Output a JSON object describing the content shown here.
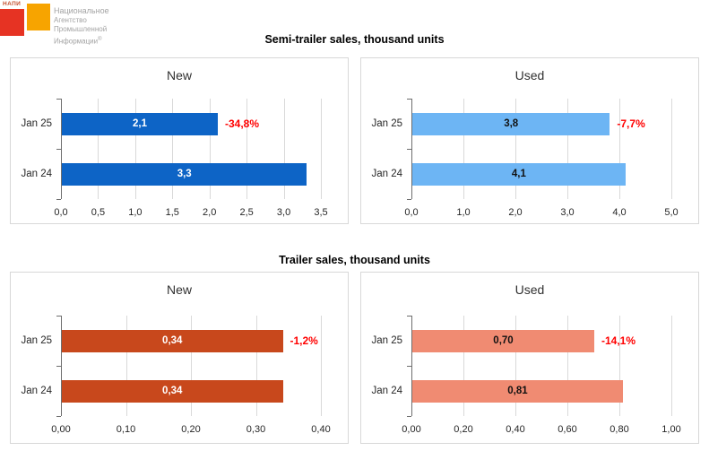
{
  "logo": {
    "acronym": "НАПИ",
    "lines": [
      "Национальное",
      "Агентство",
      "Промышленной",
      "Информации"
    ],
    "registered_mark": "®",
    "colors": {
      "red_square": "#e63323",
      "orange_square": "#f7a400"
    }
  },
  "colors": {
    "negative_pct": "#ff0000",
    "gridline": "#d9d9d9",
    "axis": "#6e6e6e",
    "panel_border": "#d8d8d8"
  },
  "sections": [
    {
      "title": "Semi-trailer sales, thousand units",
      "chart_ids": [
        0,
        1
      ]
    },
    {
      "title": "Trailer sales, thousand units",
      "chart_ids": [
        2,
        3
      ]
    }
  ],
  "chart_data": [
    {
      "type": "bar",
      "orientation": "horizontal",
      "id": "semitrailer-new",
      "title": "New",
      "categories": [
        "Jan 25",
        "Jan 24"
      ],
      "values": [
        2.1,
        3.3
      ],
      "value_labels": [
        "2,1",
        "3,3"
      ],
      "pct_change_label": "-34,8%",
      "xlim": [
        0,
        3.5
      ],
      "tick_labels": [
        "0,0",
        "0,5",
        "1,0",
        "1,5",
        "2,0",
        "2,5",
        "3,0",
        "3,5"
      ],
      "bar_color": "#0d64c6",
      "value_label_color": "#ffffff",
      "grid": true
    },
    {
      "type": "bar",
      "orientation": "horizontal",
      "id": "semitrailer-used",
      "title": "Used",
      "categories": [
        "Jan 25",
        "Jan 24"
      ],
      "values": [
        3.8,
        4.1
      ],
      "value_labels": [
        "3,8",
        "4,1"
      ],
      "pct_change_label": "-7,7%",
      "xlim": [
        0,
        5.0
      ],
      "tick_labels": [
        "0,0",
        "1,0",
        "2,0",
        "3,0",
        "4,0",
        "5,0"
      ],
      "bar_color": "#6db5f4",
      "value_label_color": "#111111",
      "grid": true
    },
    {
      "type": "bar",
      "orientation": "horizontal",
      "id": "trailer-new",
      "title": "New",
      "categories": [
        "Jan 25",
        "Jan 24"
      ],
      "values": [
        0.34,
        0.34
      ],
      "value_labels": [
        "0,34",
        "0,34"
      ],
      "pct_change_label": "-1,2%",
      "xlim": [
        0,
        0.4
      ],
      "tick_labels": [
        "0,00",
        "0,10",
        "0,20",
        "0,30",
        "0,40"
      ],
      "bar_color": "#c8481c",
      "value_label_color": "#ffffff",
      "grid": true
    },
    {
      "type": "bar",
      "orientation": "horizontal",
      "id": "trailer-used",
      "title": "Used",
      "categories": [
        "Jan 25",
        "Jan 24"
      ],
      "values": [
        0.7,
        0.81
      ],
      "value_labels": [
        "0,70",
        "0,81"
      ],
      "pct_change_label": "-14,1%",
      "xlim": [
        0,
        1.0
      ],
      "tick_labels": [
        "0,00",
        "0,20",
        "0,40",
        "0,60",
        "0,80",
        "1,00"
      ],
      "bar_color": "#f08b72",
      "value_label_color": "#111111",
      "grid": true
    }
  ]
}
